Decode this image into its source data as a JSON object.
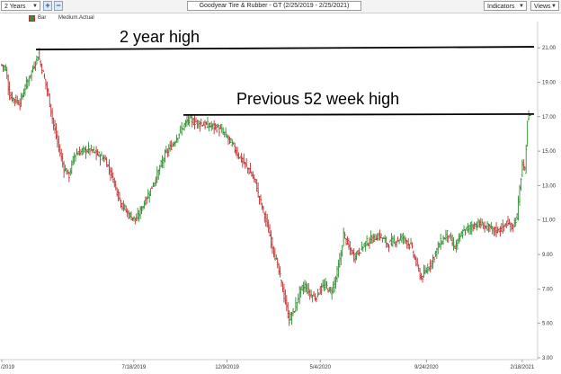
{
  "toolbar": {
    "range_select": "2 Years",
    "plus_label": "+",
    "minus_label": "−",
    "title": "Goodyear Tire & Rubber - GT (2/25/2019 - 2/25/2021)",
    "indicators_label": "Indicators",
    "views_label": "Views"
  },
  "legend": {
    "bar_label": "Bar",
    "ma_label": "Medium.Actual"
  },
  "colors": {
    "up": "#2f8f2f",
    "down": "#c03030",
    "grid": "#e2e2e2",
    "annotation_line": "#000000"
  },
  "icons": [
    "chevron-down-icon",
    "plus-icon",
    "minus-icon"
  ],
  "chart_data": {
    "type": "bar",
    "subtype": "ohlc",
    "title": "Goodyear Tire & Rubber - GT (2/25/2019 - 2/25/2021)",
    "ylim": [
      3.0,
      22.0
    ],
    "yticks": [
      "21.00",
      "19.00",
      "17.00",
      "15.00",
      "13.00",
      "11.00",
      "9.00",
      "7.00",
      "5.00",
      "3.00"
    ],
    "xticks": [
      "/2019",
      "7/18/2019",
      "12/9/2019",
      "5/4/2020",
      "9/24/2020",
      "2/18/2021"
    ],
    "grid": false,
    "annotations": [
      {
        "text": "2 year high",
        "level": 20.9
      },
      {
        "text": "Previous 52 week high",
        "level": 17.1
      }
    ],
    "anchors": [
      [
        0,
        20.0
      ],
      [
        3,
        19.8
      ],
      [
        6,
        18.2
      ],
      [
        10,
        18.0
      ],
      [
        14,
        17.8
      ],
      [
        18,
        18.7
      ],
      [
        24,
        19.8
      ],
      [
        28,
        20.6
      ],
      [
        32,
        19.5
      ],
      [
        36,
        18.2
      ],
      [
        40,
        16.5
      ],
      [
        44,
        15.2
      ],
      [
        48,
        14.0
      ],
      [
        52,
        13.6
      ],
      [
        56,
        14.8
      ],
      [
        62,
        15.0
      ],
      [
        68,
        15.1
      ],
      [
        74,
        14.8
      ],
      [
        80,
        14.5
      ],
      [
        86,
        13.4
      ],
      [
        92,
        12.0
      ],
      [
        98,
        11.3
      ],
      [
        104,
        11.0
      ],
      [
        108,
        11.7
      ],
      [
        114,
        12.6
      ],
      [
        120,
        13.6
      ],
      [
        126,
        14.8
      ],
      [
        132,
        15.4
      ],
      [
        138,
        16.2
      ],
      [
        144,
        16.8
      ],
      [
        150,
        16.7
      ],
      [
        158,
        16.5
      ],
      [
        166,
        16.4
      ],
      [
        172,
        16.0
      ],
      [
        178,
        15.4
      ],
      [
        184,
        14.6
      ],
      [
        190,
        14.0
      ],
      [
        196,
        13.2
      ],
      [
        198,
        12.5
      ],
      [
        202,
        11.5
      ],
      [
        206,
        10.4
      ],
      [
        210,
        9.2
      ],
      [
        214,
        8.0
      ],
      [
        218,
        6.6
      ],
      [
        222,
        5.2
      ],
      [
        226,
        5.8
      ],
      [
        230,
        6.8
      ],
      [
        234,
        7.2
      ],
      [
        238,
        6.7
      ],
      [
        242,
        6.5
      ],
      [
        246,
        7.0
      ],
      [
        250,
        7.2
      ],
      [
        254,
        6.8
      ],
      [
        258,
        7.6
      ],
      [
        262,
        9.0
      ],
      [
        264,
        10.2
      ],
      [
        268,
        9.4
      ],
      [
        272,
        8.9
      ],
      [
        276,
        9.2
      ],
      [
        280,
        9.6
      ],
      [
        286,
        9.9
      ],
      [
        292,
        10.1
      ],
      [
        298,
        9.6
      ],
      [
        304,
        9.8
      ],
      [
        310,
        10.0
      ],
      [
        316,
        9.5
      ],
      [
        320,
        8.5
      ],
      [
        324,
        7.6
      ],
      [
        328,
        8.1
      ],
      [
        332,
        8.6
      ],
      [
        338,
        9.6
      ],
      [
        344,
        10.2
      ],
      [
        350,
        9.4
      ],
      [
        356,
        10.3
      ],
      [
        362,
        10.6
      ],
      [
        368,
        10.8
      ],
      [
        374,
        10.6
      ],
      [
        380,
        10.4
      ],
      [
        386,
        10.5
      ],
      [
        390,
        10.8
      ],
      [
        394,
        10.6
      ],
      [
        398,
        11.2
      ],
      [
        400,
        12.8
      ],
      [
        402,
        14.2
      ],
      [
        404,
        13.8
      ],
      [
        406,
        16.8
      ],
      [
        408,
        17.2
      ]
    ]
  }
}
